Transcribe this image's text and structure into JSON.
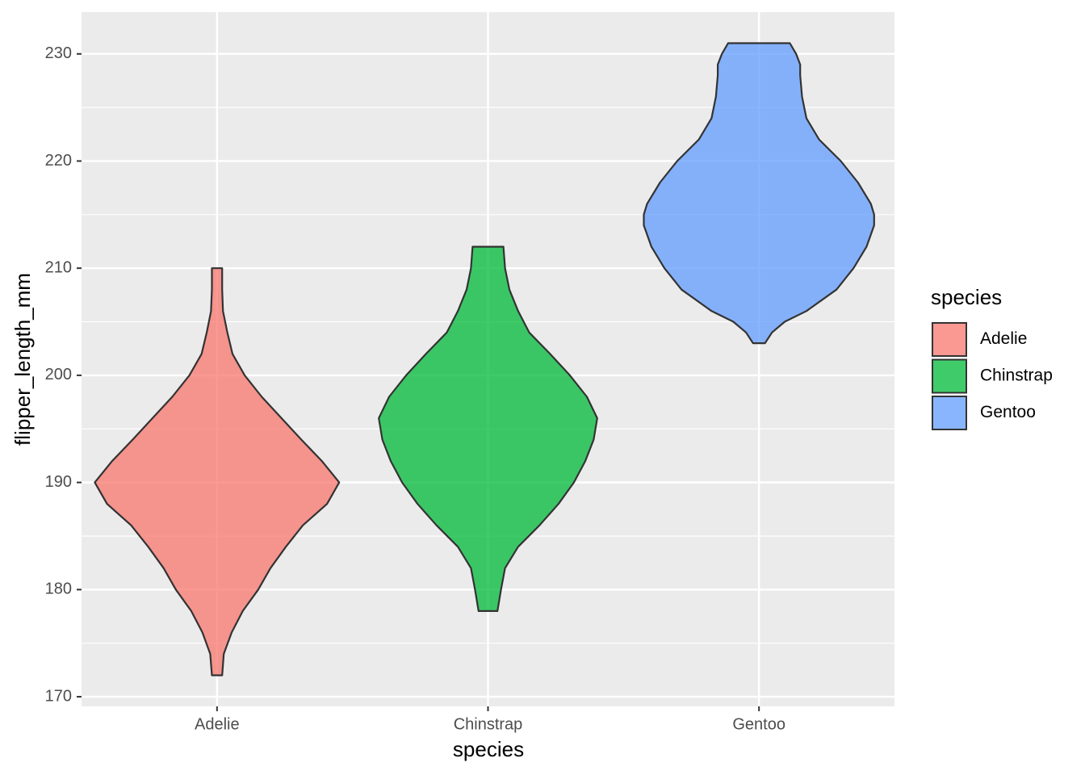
{
  "chart_data": {
    "type": "violin",
    "xlabel": "species",
    "ylabel": "flipper_length_mm",
    "categories": [
      "Adelie",
      "Chinstrap",
      "Gentoo"
    ],
    "ylim": [
      169.1,
      233.9
    ],
    "yticks": [
      170,
      180,
      190,
      200,
      210,
      220,
      230
    ],
    "yminorticks": [
      175,
      185,
      195,
      205,
      215,
      225
    ],
    "grid": true,
    "legend": {
      "title": "species",
      "position": "right"
    },
    "series": [
      {
        "name": "Adelie",
        "color": "#F8766D",
        "y": [
          172,
          174,
          176,
          178,
          180,
          182,
          184,
          186,
          188,
          190,
          192,
          194,
          196,
          198,
          200,
          202,
          204,
          206,
          208,
          210
        ],
        "half_width": [
          0.019,
          0.025,
          0.054,
          0.095,
          0.152,
          0.197,
          0.254,
          0.317,
          0.406,
          0.451,
          0.387,
          0.311,
          0.238,
          0.165,
          0.102,
          0.057,
          0.038,
          0.022,
          0.019,
          0.019
        ]
      },
      {
        "name": "Chinstrap",
        "color": "#00BA38",
        "y": [
          178,
          180,
          182,
          184,
          186,
          188,
          190,
          192,
          194,
          196,
          198,
          200,
          202,
          204,
          206,
          208,
          210,
          212
        ],
        "half_width": [
          0.035,
          0.048,
          0.063,
          0.111,
          0.19,
          0.26,
          0.317,
          0.359,
          0.39,
          0.403,
          0.365,
          0.302,
          0.229,
          0.152,
          0.111,
          0.079,
          0.063,
          0.057
        ]
      },
      {
        "name": "Gentoo",
        "color": "#619CFF",
        "y": [
          203,
          204,
          205,
          206,
          208,
          210,
          212,
          214,
          215,
          216,
          218,
          220,
          222,
          224,
          226,
          228,
          229,
          230,
          231
        ],
        "half_width": [
          0.022,
          0.048,
          0.095,
          0.175,
          0.286,
          0.349,
          0.397,
          0.425,
          0.425,
          0.413,
          0.365,
          0.302,
          0.222,
          0.175,
          0.159,
          0.152,
          0.152,
          0.137,
          0.114
        ]
      }
    ]
  }
}
